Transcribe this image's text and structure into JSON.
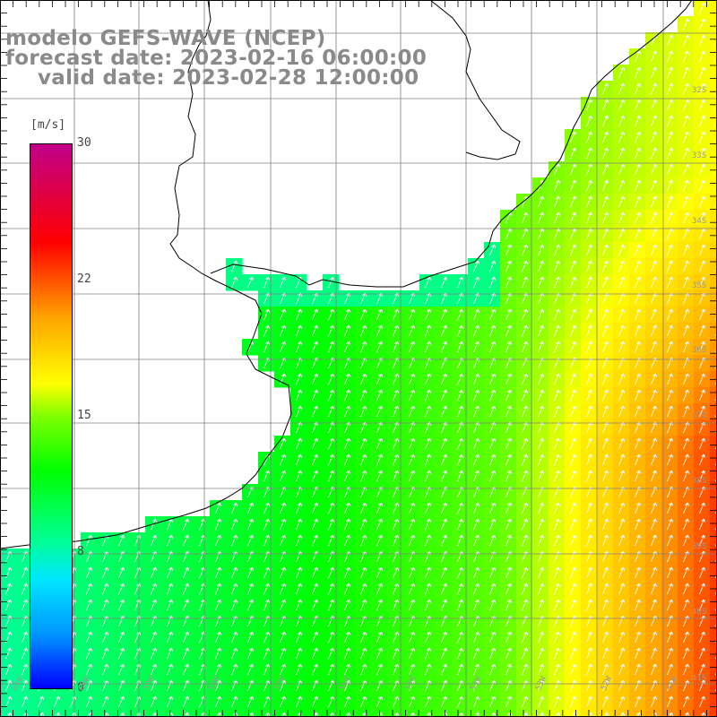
{
  "title": {
    "line1": "modelo GEFS-WAVE (NCEP)",
    "line2": "forecast date: 2023-02-16 06:00:00",
    "line3": "valid date: 2023-02-28 12:00:00"
  },
  "colorbar": {
    "unit": "[m/s]",
    "ticks": [
      "30",
      "22",
      "15",
      "8",
      "0"
    ],
    "range": [
      0,
      30
    ]
  },
  "map": {
    "lat_labels": [
      "32S",
      "33S",
      "34S",
      "35S",
      "36S",
      "37S",
      "38S",
      "39S",
      "40S",
      "41S"
    ],
    "lon_labels": [
      "61W",
      "60W",
      "59W",
      "58W",
      "57W",
      "56W",
      "55W",
      "54W",
      "53W",
      "52W",
      "51W"
    ],
    "colors": {
      "land": "#ffffff",
      "coast": "#000000",
      "grid": "#808080",
      "arrow": "#ffffff"
    },
    "wind_direction": "from south-southwest, increasing to the east"
  }
}
